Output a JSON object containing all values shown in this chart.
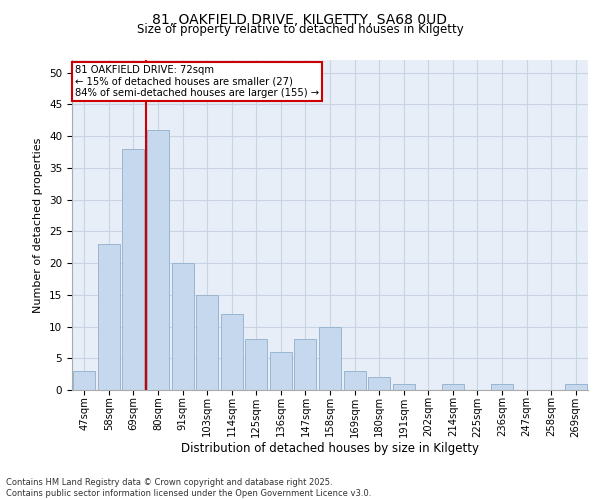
{
  "title1": "81, OAKFIELD DRIVE, KILGETTY, SA68 0UD",
  "title2": "Size of property relative to detached houses in Kilgetty",
  "xlabel": "Distribution of detached houses by size in Kilgetty",
  "ylabel": "Number of detached properties",
  "categories": [
    "47sqm",
    "58sqm",
    "69sqm",
    "80sqm",
    "91sqm",
    "103sqm",
    "114sqm",
    "125sqm",
    "136sqm",
    "147sqm",
    "158sqm",
    "169sqm",
    "180sqm",
    "191sqm",
    "202sqm",
    "214sqm",
    "225sqm",
    "236sqm",
    "247sqm",
    "258sqm",
    "269sqm"
  ],
  "values": [
    3,
    23,
    38,
    41,
    20,
    15,
    12,
    8,
    6,
    8,
    10,
    3,
    2,
    1,
    0,
    1,
    0,
    1,
    0,
    0,
    1
  ],
  "bar_color": "#c5d8ed",
  "bar_edge_color": "#9ab5d0",
  "grid_color": "#c8d4e4",
  "background_color": "#e8eef8",
  "red_line_index": 2.5,
  "annotation_box_text": "81 OAKFIELD DRIVE: 72sqm\n← 15% of detached houses are smaller (27)\n84% of semi-detached houses are larger (155) →",
  "annotation_box_color": "#cc0000",
  "footer_text": "Contains HM Land Registry data © Crown copyright and database right 2025.\nContains public sector information licensed under the Open Government Licence v3.0.",
  "ylim": [
    0,
    52
  ],
  "yticks": [
    0,
    5,
    10,
    15,
    20,
    25,
    30,
    35,
    40,
    45,
    50
  ]
}
